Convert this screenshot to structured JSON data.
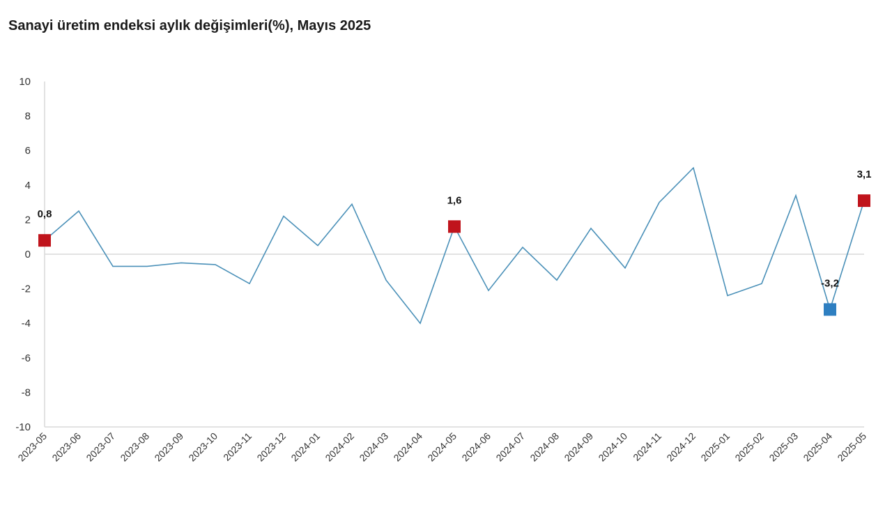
{
  "chart_data": {
    "type": "line",
    "title": "Sanayi üretim endeksi aylık değişimleri(%), Mayıs 2025",
    "xlabel": "",
    "ylabel": "",
    "ylim": [
      -10,
      10
    ],
    "y_ticks": [
      "10",
      "8",
      "6",
      "4",
      "2",
      "0",
      "-2",
      "-4",
      "-6",
      "-8",
      "-10"
    ],
    "y_tick_values": [
      10,
      8,
      6,
      4,
      2,
      0,
      -2,
      -4,
      -6,
      -8,
      -10
    ],
    "grid": false,
    "legend": "none",
    "categories": [
      "2023-05",
      "2023-06",
      "2023-07",
      "2023-08",
      "2023-09",
      "2023-10",
      "2023-11",
      "2023-12",
      "2024-01",
      "2024-02",
      "2024-03",
      "2024-04",
      "2024-05",
      "2024-06",
      "2024-07",
      "2024-08",
      "2024-09",
      "2024-10",
      "2024-11",
      "2024-12",
      "2025-01",
      "2025-02",
      "2025-03",
      "2025-04",
      "2025-05"
    ],
    "series": [
      {
        "values": [
          0.8,
          2.5,
          -0.7,
          -0.7,
          -0.5,
          -0.6,
          -1.7,
          2.2,
          0.5,
          2.9,
          -1.5,
          -4.0,
          1.6,
          -2.1,
          0.4,
          -1.5,
          1.5,
          -0.8,
          3.0,
          5.0,
          -2.4,
          -1.7,
          3.4,
          -3.2,
          3.1
        ],
        "color": "#4a90b8"
      }
    ],
    "markers": [
      {
        "category": "2023-05",
        "value": 0.8,
        "label": "0,8",
        "color": "#c0141c"
      },
      {
        "category": "2024-05",
        "value": 1.6,
        "label": "1,6",
        "color": "#c0141c"
      },
      {
        "category": "2025-04",
        "value": -3.2,
        "label": "-3,2",
        "color": "#2e7fc1"
      },
      {
        "category": "2025-05",
        "value": 3.1,
        "label": "3,1",
        "color": "#c0141c"
      }
    ],
    "colors": {
      "line": "#4a90b8",
      "axis": "#d9d9d9",
      "zero_line": "#d9d9d9",
      "highlight_red": "#c0141c",
      "highlight_blue": "#2e7fc1"
    }
  }
}
